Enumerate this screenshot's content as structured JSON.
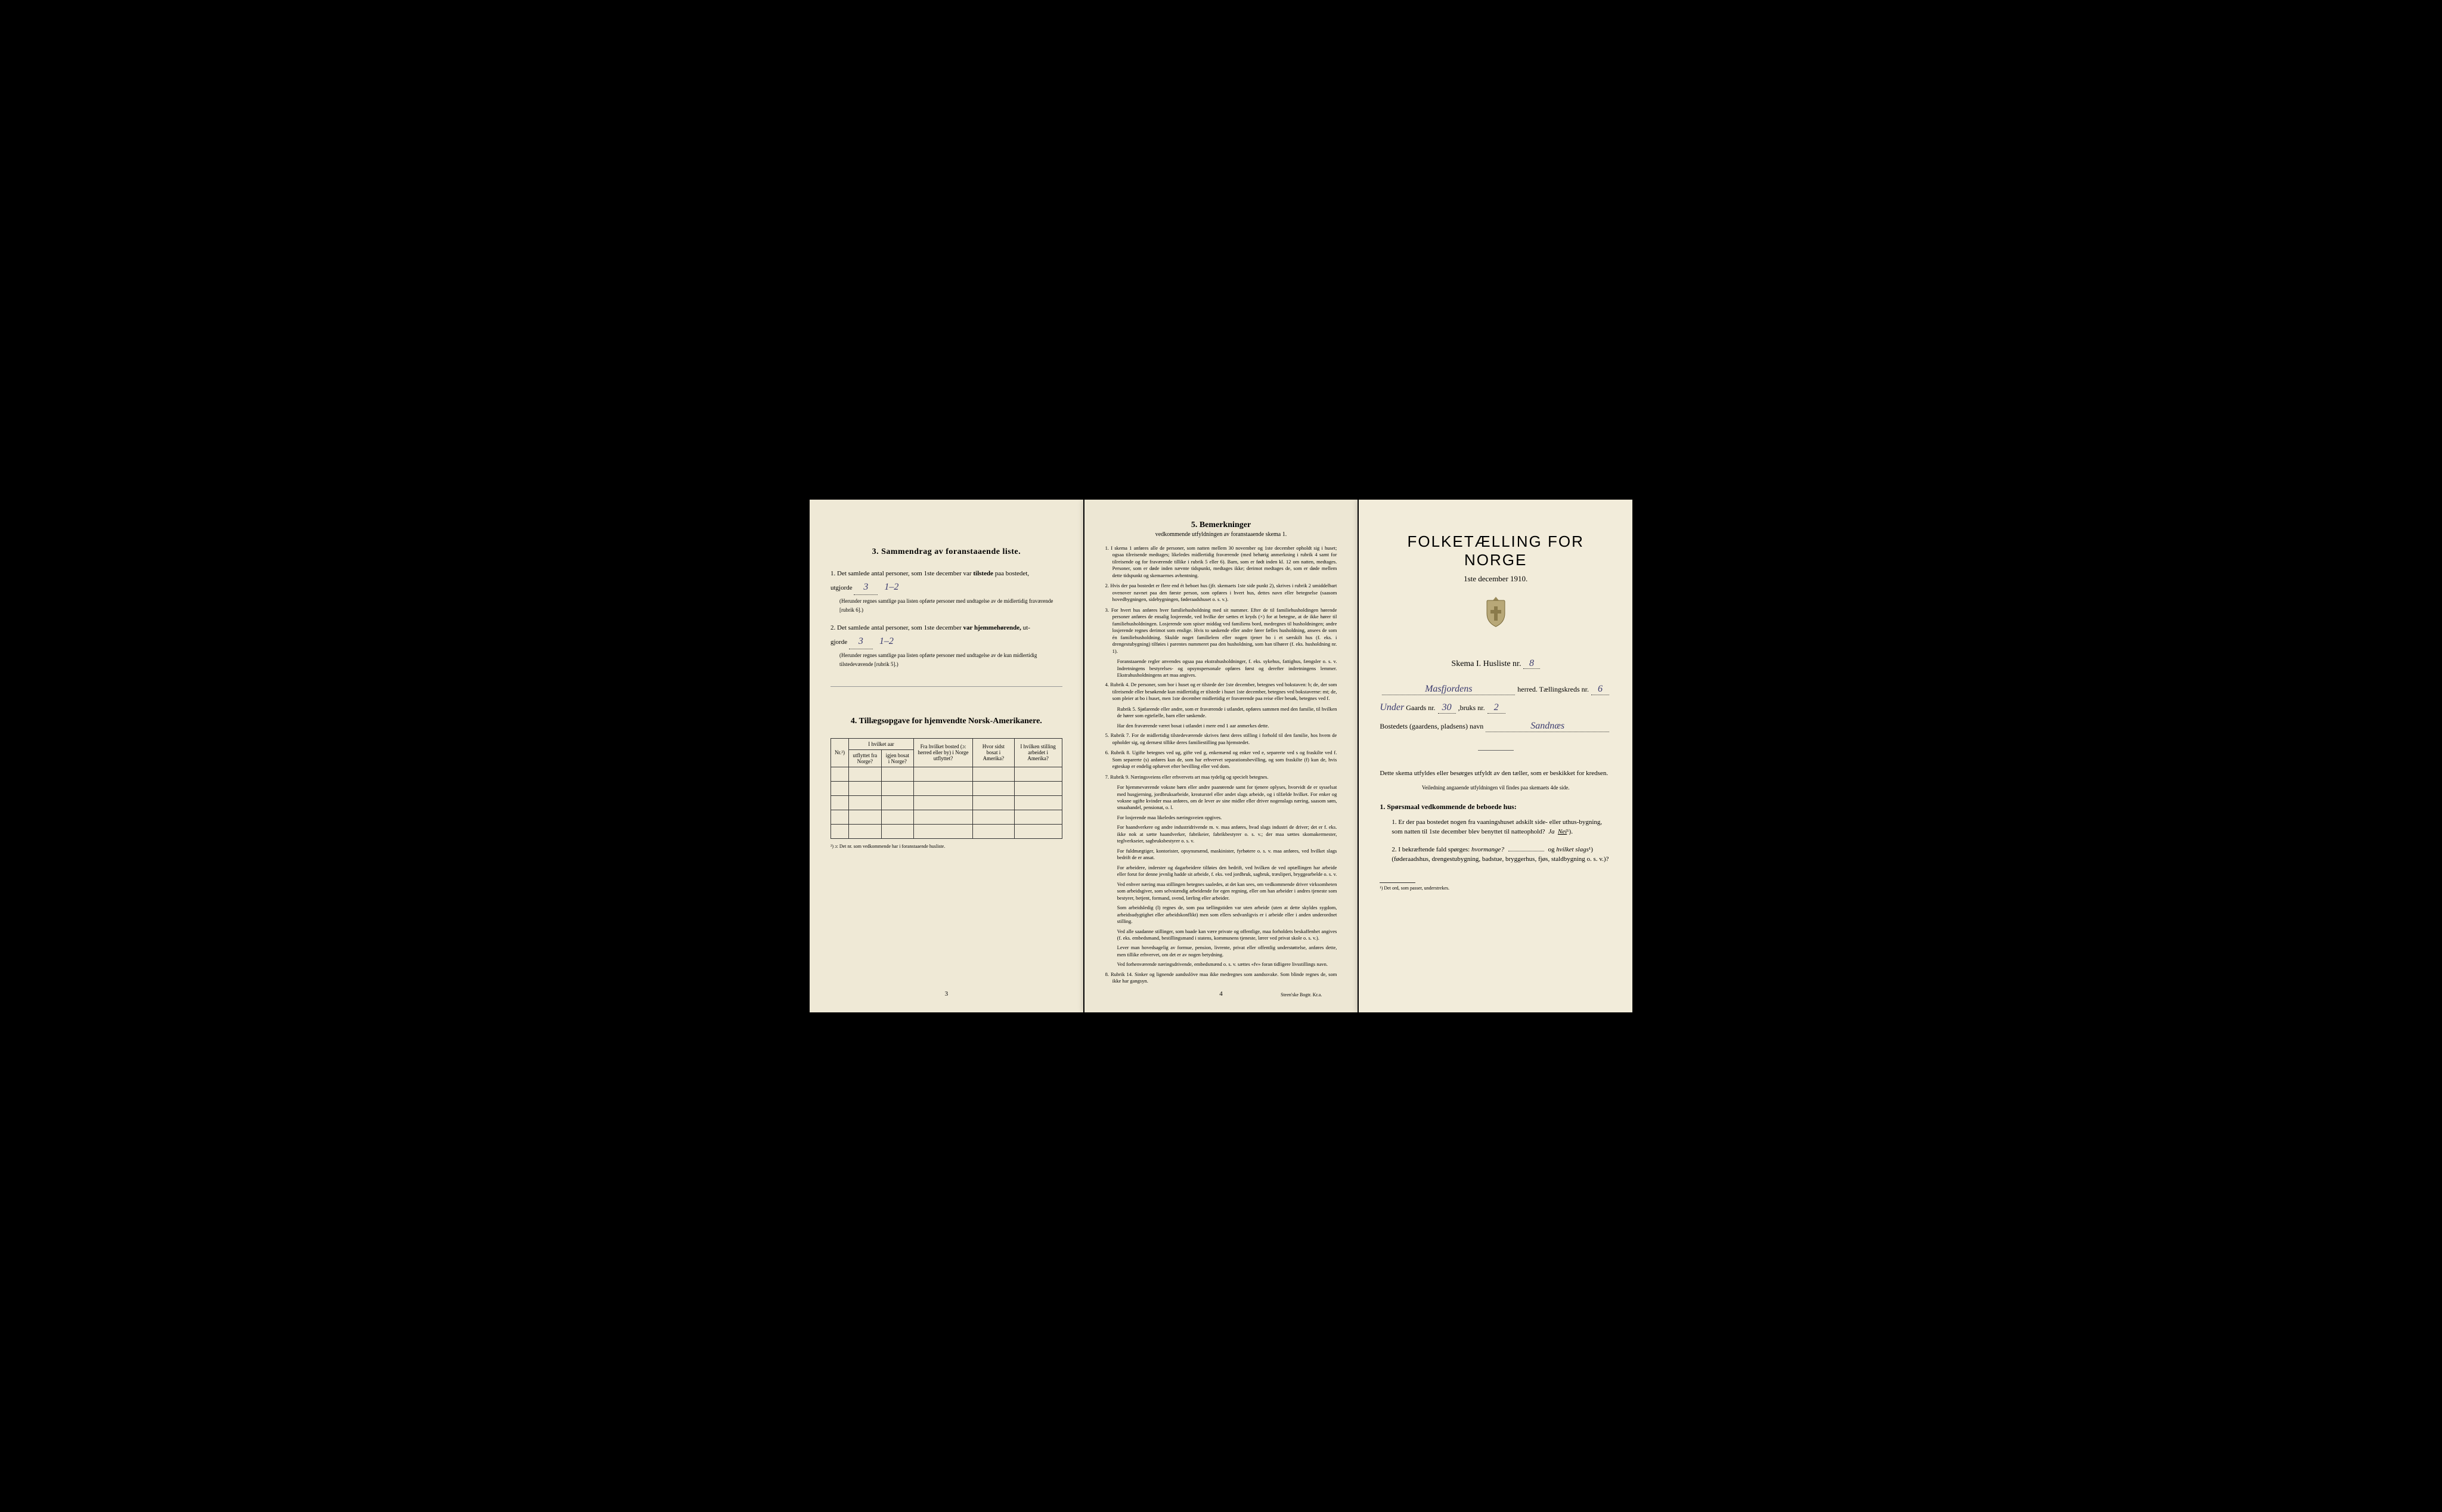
{
  "page1": {
    "section3": {
      "title": "3.   Sammendrag av foranstaaende liste.",
      "item1_prefix": "1.  Det samlede antal personer, som 1ste december var",
      "item1_bold": "tilstede",
      "item1_suffix": "paa bostedet,",
      "item1_line2": "utgjorde",
      "item1_value1": "3",
      "item1_value2": "1–2",
      "item1_note": "(Herunder regnes samtlige paa listen opførte personer med undtagelse av de midlertidig fraværende [rubrik 6].)",
      "item2_prefix": "2.  Det samlede antal personer, som 1ste december",
      "item2_bold": "var hjemmehørende,",
      "item2_suffix": "ut-",
      "item2_line2": "gjorde",
      "item2_value1": "3",
      "item2_value2": "1–2",
      "item2_note": "(Herunder regnes samtlige paa listen opførte personer med undtagelse av de kun midlertidig tilstedeværende [rubrik 5].)"
    },
    "section4": {
      "title": "4.  Tillægsopgave for hjemvendte Norsk-Amerikanere.",
      "headers": {
        "col1": "Nr.²)",
        "col2a": "I hvilket aar",
        "col2b_top": "utflyttet fra Norge?",
        "col2b_bottom": "igjen bosat i Norge?",
        "col3": "Fra hvilket bosted (ɔ: herred eller by) i Norge utflyttet?",
        "col4": "Hvor sidst bosat i Amerika?",
        "col5": "I hvilken stilling arbeidet i Amerika?"
      },
      "footnote": "²) ɔ: Det nr. som vedkommende har i foranstaaende husliste."
    },
    "page_num": "3"
  },
  "page2": {
    "title": "5.  Bemerkninger",
    "subtitle": "vedkommende utfyldningen av foranstaaende skema 1.",
    "remarks": [
      "1. I skema 1 anføres alle de personer, som natten mellem 30 november og 1ste december opholdt sig i huset; ogsaa tilreisende medtages; likeledes midlertidig fraværende (med behørig anmerkning i rubrik 4 samt for tilreisende og for fraværende tillike i rubrik 5 eller 6). Barn, som er født inden kl. 12 om natten, medtages. Personer, som er døde inden nævnte tidspunkt, medtages ikke; derimot medtages de, som er døde mellem dette tidspunkt og skemaernes avhentning.",
      "2. Hvis der paa bostedet er flere end ét beboet hus (jfr. skemaets 1ste side punkt 2), skrives i rubrik 2 umiddelbart ovenover navnet paa den første person, som opføres i hvert hus, dettes navn eller betegnelse (saasom hovedbygningen, sidebygningen, føderaadshuset o. s. v.).",
      "3. For hvert hus anføres hver familiehusholdning med sit nummer. Efter de til familiehusholdingen hørende personer anføres de ensalig losjerende, ved hvilke der sættes et kryds (×) for at betegne, at de ikke hører til familiehusholdningen. Losjerende som spiser middag ved familiens bord, medregnes til husholdningen; andre losjerende regnes derimot som enslige. Hvis to søskende eller andre fører fælles husholdning, ansees de som én familiehusholdning. Skulde noget familielem eller nogen tjener bo i et særskilt hus (f. eks. i drengestubygning) tilføies i parentes nummeret paa den husholdning, som han tilhører (f. eks. husholdning nr. 1).",
      "Foranstaaende regler anvendes ogsaa paa ekstrahusholdninger, f. eks. sykehus, fattighus, fængsler o. s. v. Indretningens bestyrelses- og opsynspersonale opføres først og derefter indretningens lemmer. Ekstrahusholdningens art maa angives.",
      "4. Rubrik 4. De personer, som bor i huset og er tilstede der 1ste december, betegnes ved bokstaven: b; de, der som tilreisende eller besøkende kun midlertidig er tilstede i huset 1ste december, betegnes ved bokstaverne: mt; de, som pleier at bo i huset, men 1ste december midlertidig er fraværende paa reise eller besøk, betegnes ved f.",
      "Rubrik 5. Sjøfarende eller andre, som er fraværende i utlandet, opføres sammen med den familie, til hvilken de hører som egtefælle, barn eller søskende.",
      "Har den fraværende været bosat i utlandet i mere end 1 aar anmerkes dette.",
      "5. Rubrik 7. For de midlertidig tilstedeværende skrives først deres stilling i forhold til den familie, hos hvem de opholder sig, og dernæst tillike deres familiestilling paa hjemstedet.",
      "6. Rubrik 8. Ugifte betegnes ved ug, gifte ved g, enkemænd og enker ved e, separerte ved s og fraskilte ved f. Som separerte (s) anføres kun de, som har erhvervet separationsbevilling, og som fraskilte (f) kun de, hvis egteskap er endelig ophævet efter bevilling eller ved dom.",
      "7. Rubrik 9. Næringsveiens eller erhvervets art maa tydelig og specielt betegnes.",
      "For hjemmeværende voksne børn eller andre paarørende samt for tjenere oplyses, hvorvidt de er sysselsat med husgjerning, jordbruksarbeide, kreaturstel eller andet slags arbeide, og i tilfælde hvilket. For enker og voksne ugifte kvinder maa anføres, om de lever av sine midler eller driver nogenslags næring, saasom søm, smaahandel, pensionat, o. l.",
      "For losjerende maa likeledes næringsveien opgives.",
      "For haandverkere og andre industridrivende m. v. maa anføres, hvad slags industri de driver; det er f. eks. ikke nok at sætte haandverker, fabrikeier, fabrikbestyrer o. s. v.; der maa sættes skomakermester, teglverkseier, sagbruksbestyrer o. s. v.",
      "For fuldmægtiger, kontorister, opsynsmænd, maskinister, fyrbøtere o. s. v. maa anføres, ved hvilket slags bedrift de er ansat.",
      "For arbeidere, inderster og dagarbeidere tilføies den bedrift, ved hvilken de ved optællingen har arbeide eller forut for denne jevnlig hadde sit arbeide, f. eks. ved jordbruk, sagbruk, træsliperi, bryggearbelde o. s. v.",
      "Ved enhver næring maa stillingen betegnes saaledes, at det kan sees, om vedkommende driver virksomheten som arbeidsgiver, som selvstændig arbeidende for egen regning, eller om han arbeider i andres tjeneste som bestyrer, betjent, formand, svend, lærling eller arbeider.",
      "Som arbeidsledig (l) regnes de, som paa tællingstiden var uten arbeide (uten at dette skyldes sygdom, arbeidsudygtighet eller arbeidskonflikt) men som ellers sedvanligvis er i arbeide eller i anden underordnet stilling.",
      "Ved alle saadanne stillinger, som baade kan være private og offentlige, maa forholdets beskaffenhet angives (f. eks. embedsmand, bestillingsmand i statens, kommunens tjeneste, lærer ved privat skole o. s. v.).",
      "Lever man hovedsagelig av formue, pension, livrente, privat eller offentlig understøttelse, anføres dette, men tillike erhvervet, om det er av nogen betydning.",
      "Ved forhenværende næringsdrivende, embedsmænd o. s. v. sættes «fv» foran tidligere livsstillings navn.",
      "8. Rubrik 14. Sinker og lignende aandsslöve maa ikke medregnes som aandssvake. Som blinde regnes de, som ikke har gangsyn."
    ],
    "page_num": "4",
    "printer": "Steen'ske Bogtr. Kr.a."
  },
  "page3": {
    "main_title": "FOLKETÆLLING FOR NORGE",
    "subtitle": "1ste december 1910.",
    "skema": "Skema I.   Husliste nr.",
    "skema_value": "8",
    "herred_label": "herred.  Tællingskreds nr.",
    "herred_value": "Masfjordens",
    "kreds_value": "6",
    "gaards_prefix": "Under",
    "gaards_label": "Gaards nr.",
    "gaards_value": "30",
    "bruks_label": "bruks nr.",
    "bruks_value": "2",
    "bosted_label": "Bostedets (gaardens, pladsens) navn",
    "bosted_value": "Sandnæs",
    "description": "Dette skema utfyldes eller besørges utfyldt av den tæller, som er beskikket for kredsen.",
    "small_note": "Veiledning angaaende utfyldningen vil findes paa skemaets 4de side.",
    "questions_header": "1. Spørsmaal vedkommende de beboede hus:",
    "q1": "1.  Er der paa bostedet nogen fra vaaningshuset adskilt side- eller uthus-bygning, som natten til 1ste december blev benyttet til natteophold?",
    "q1_ja": "Ja",
    "q1_nei": "Nei",
    "q1_sup": "¹).",
    "q2": "2.  I bekræftende fald spørges:",
    "q2_italic1": "hvormange?",
    "q2_mid": "og",
    "q2_italic2": "hvilket slags",
    "q2_sup": "¹)",
    "q2_paren": "(føderaadshus, drengestubygning, badstue, bryggerhus, fjøs, staldbygning o. s. v.)?",
    "footnote": "¹) Det ord, som passer, understrekes."
  }
}
